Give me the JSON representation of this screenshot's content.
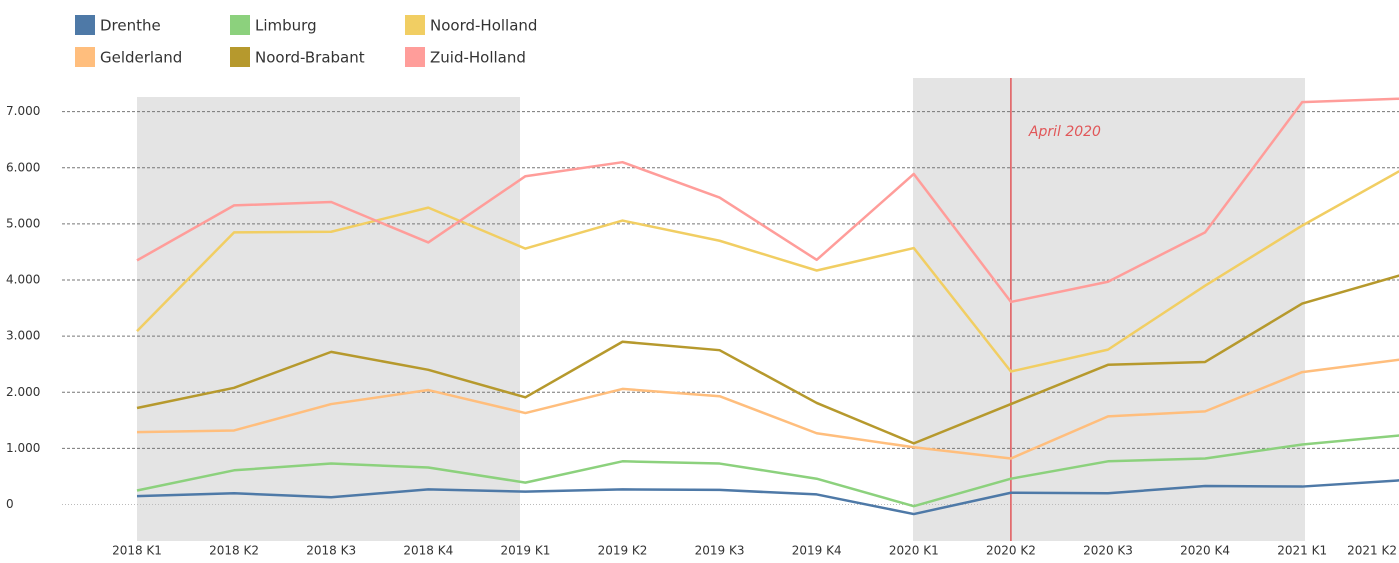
{
  "chart_data": {
    "type": "line",
    "categories": [
      "2018 K1",
      "2018 K2",
      "2018 K3",
      "2018 K4",
      "2019 K1",
      "2019 K2",
      "2019 K3",
      "2019 K4",
      "2020 K1",
      "2020 K2",
      "2020 K3",
      "2020 K4",
      "2021 K1",
      "2021 K2"
    ],
    "series": [
      {
        "name": "Drenthe",
        "color": "#4e79a7",
        "values": [
          150,
          200,
          130,
          270,
          230,
          270,
          260,
          180,
          -170,
          210,
          200,
          330,
          320,
          430
        ]
      },
      {
        "name": "Gelderland",
        "color": "#ffbe7d",
        "values": [
          1290,
          1320,
          1790,
          2040,
          1630,
          2060,
          1930,
          1270,
          1020,
          820,
          1570,
          1660,
          2360,
          2580
        ]
      },
      {
        "name": "Limburg",
        "color": "#8cd17d",
        "values": [
          250,
          610,
          730,
          660,
          390,
          770,
          730,
          460,
          -30,
          460,
          770,
          820,
          1070,
          1230
        ]
      },
      {
        "name": "Noord-Brabant",
        "color": "#b6992d",
        "values": [
          1720,
          2080,
          2720,
          2400,
          1910,
          2900,
          2750,
          1810,
          1090,
          1790,
          2490,
          2540,
          3580,
          4080
        ]
      },
      {
        "name": "Noord-Holland",
        "color": "#f1ce63",
        "values": [
          3090,
          4850,
          4860,
          5290,
          4560,
          5060,
          4700,
          4170,
          4570,
          2370,
          2760,
          3900,
          4970,
          5940
        ]
      },
      {
        "name": "Zuid-Holland",
        "color": "#ff9d9a",
        "values": [
          4350,
          5330,
          5390,
          4670,
          5850,
          6100,
          5470,
          4360,
          5890,
          3610,
          3970,
          4850,
          7170,
          7230
        ]
      }
    ],
    "ylim": [
      -650,
      7600
    ],
    "yticks": [
      0,
      {
        "value": 1000,
        "label": "1.000"
      },
      {
        "value": 2000,
        "label": "2.000"
      },
      {
        "value": 3000,
        "label": "3.000"
      },
      {
        "value": 4000,
        "label": "4.000"
      },
      {
        "value": 5000,
        "label": "5.000"
      },
      {
        "value": 6000,
        "label": "6.000"
      },
      {
        "value": 7000,
        "label": "7.000"
      }
    ],
    "grid": true,
    "legend": "top-left",
    "annotation": {
      "text": "April 2020",
      "x": "2020 K2",
      "color": "#e15759"
    }
  }
}
